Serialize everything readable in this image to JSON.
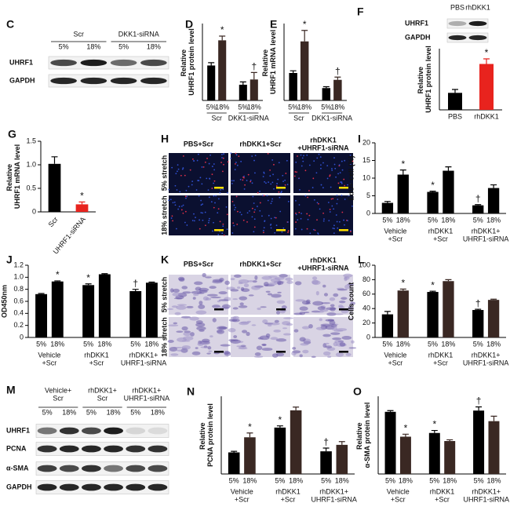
{
  "blots": [
    {
      "panel_label": "C",
      "headers": [
        [
          "Scr"
        ],
        [
          "DKK1-siRNA"
        ]
      ],
      "lanes": [
        "5%",
        "18%",
        "5%",
        "18%"
      ],
      "rows": [
        "UHRF1",
        "GAPDH"
      ]
    },
    {
      "panel_label": "F",
      "headers": [
        [
          "PBS"
        ],
        [
          "rhDKK1"
        ]
      ],
      "rows": [
        "UHRF1",
        "GAPDH"
      ]
    },
    {
      "panel_label": "M",
      "headers": [
        [
          "Vehicle+",
          "Scr"
        ],
        [
          "rhDKK1+",
          "Scr"
        ],
        [
          "rhDKK1+",
          "UHRF1-siRNA"
        ]
      ],
      "lanes": [
        "5%",
        "18%",
        "5%",
        "18%",
        "5%",
        "18%"
      ],
      "rows": [
        "UHRF1",
        "PCNA",
        "α-SMA",
        "GAPDH"
      ]
    }
  ],
  "images": [
    {
      "panel_label": "H",
      "columns": [
        [
          "PBS+Scr"
        ],
        [
          "rhDKK1+Scr"
        ],
        [
          "rhDKK1",
          "+UHRF1-siRNA"
        ]
      ],
      "rows": [
        "5% stretch",
        "18% stretch"
      ]
    },
    {
      "panel_label": "K",
      "columns": [
        [
          "PBS+Scr"
        ],
        [
          "rhDKK1+Scr"
        ],
        [
          "rhDKK1",
          "+UHRF1-siRNA"
        ]
      ],
      "rows": [
        "5% stretch",
        "18% stretch"
      ]
    }
  ],
  "chart_data": [
    {
      "type": "bar",
      "panel_label": "D",
      "ylabel": "Relative UHRF1 protein level",
      "categories": [
        "5%",
        "18%",
        "5%",
        "18%"
      ],
      "groups": [
        [
          "Scr"
        ],
        [
          "DKK1-siRNA"
        ]
      ],
      "values": [
        1.0,
        1.72,
        0.45,
        0.6
      ],
      "errors": [
        0.08,
        0.12,
        0.08,
        0.2
      ],
      "colors": [
        "#000000",
        "#3a2823",
        "#000000",
        "#3a2823"
      ],
      "annotations": [
        null,
        "*",
        null,
        "†"
      ],
      "ylim": [
        0,
        2.2
      ]
    },
    {
      "type": "bar",
      "panel_label": "E",
      "ylabel": "Relative UHRF1 mRNA level",
      "categories": [
        "5%",
        "18%",
        "5%",
        "18%"
      ],
      "groups": [
        [
          "Scr"
        ],
        [
          "DKK1-siRNA"
        ]
      ],
      "values": [
        1.0,
        2.15,
        0.45,
        0.75
      ],
      "errors": [
        0.08,
        0.4,
        0.05,
        0.1
      ],
      "colors": [
        "#000000",
        "#3a2823",
        "#000000",
        "#3a2823"
      ],
      "annotations": [
        null,
        "*",
        null,
        "†"
      ],
      "ylim": [
        0,
        2.8
      ]
    },
    {
      "type": "bar",
      "ylabel": "Relative UHRF1 protein level",
      "categories": [
        "PBS",
        "rhDKK1"
      ],
      "values": [
        1.0,
        2.7
      ],
      "errors": [
        0.2,
        0.3
      ],
      "colors": [
        "#000000",
        "#e8231e"
      ],
      "annotations": [
        null,
        "*"
      ],
      "ylim": [
        0,
        3.6
      ]
    },
    {
      "type": "bar",
      "panel_label": "G",
      "ylabel": "Relative UHRF1 mRNA level",
      "categories": [
        "Scr",
        "UHRF1-siRNA"
      ],
      "values": [
        1.02,
        0.16
      ],
      "errors": [
        0.15,
        0.05
      ],
      "colors": [
        "#000000",
        "#e8231e"
      ],
      "annotations": [
        null,
        "*"
      ],
      "ylim": [
        0,
        1.5
      ],
      "yticks": [
        0,
        0.5,
        {
          "value": 1,
          "label": "1.0"
        },
        1.5
      ]
    },
    {
      "type": "bar",
      "panel_label": "I",
      "ylabel": "EdU+ cell (%)",
      "categories": [
        "5%",
        "18%",
        "5%",
        "18%",
        "5%",
        "18%"
      ],
      "groups": [
        [
          "Vehicle",
          "+Scr"
        ],
        [
          "rhDKK1",
          "+Scr"
        ],
        [
          "rhDKK1+",
          "UHRF1-siRNA"
        ]
      ],
      "values": [
        3,
        11,
        6.1,
        12.1,
        2.3,
        7.2
      ],
      "errors": [
        0.4,
        1.3,
        0.2,
        1.1,
        0.2,
        0.9
      ],
      "colors": [
        "#000000",
        "#000000",
        "#000000",
        "#000000",
        "#000000",
        "#000000"
      ],
      "annotations": [
        null,
        "*",
        "*",
        null,
        "†",
        null
      ],
      "ylim": [
        0,
        20
      ],
      "yticks": [
        0,
        5,
        10,
        15,
        20
      ]
    },
    {
      "type": "bar",
      "panel_label": "J",
      "ylabel": "OD450nm",
      "categories": [
        "5%",
        "18%",
        "5%",
        "18%",
        "5%",
        "18%"
      ],
      "groups": [
        [
          "Vehicle",
          "+Scr"
        ],
        [
          "rhDKK1",
          "+Scr"
        ],
        [
          "rhDKK1+",
          "UHRF1-siRNA"
        ]
      ],
      "values": [
        0.72,
        0.93,
        0.87,
        1.05,
        0.77,
        0.91
      ],
      "errors": [
        0.01,
        0.01,
        0.02,
        0.01,
        0.03,
        0.01
      ],
      "colors": [
        "#000000",
        "#000000",
        "#000000",
        "#000000",
        "#000000",
        "#000000"
      ],
      "annotations": [
        null,
        "*",
        "*",
        null,
        "†",
        null
      ],
      "ylim": [
        0,
        1.2
      ],
      "yticks": [
        0,
        0.2,
        0.4,
        0.6,
        0.8,
        {
          "value": 1,
          "label": "1.0"
        },
        1.2
      ]
    },
    {
      "type": "bar",
      "panel_label": "L",
      "ylabel": "Cells count",
      "categories": [
        "5%",
        "18%",
        "5%",
        "18%",
        "5%",
        "18%"
      ],
      "groups": [
        [
          "Vehicle",
          "+Scr"
        ],
        [
          "rhDKK1",
          "+Scr"
        ],
        [
          "rhDKK1+",
          "UHRF1-siRNA"
        ]
      ],
      "values": [
        32,
        65,
        63,
        78,
        38,
        52
      ],
      "errors": [
        4,
        2,
        1,
        2,
        1,
        1
      ],
      "colors": [
        "#000000",
        "#3a2823",
        "#000000",
        "#3a2823",
        "#000000",
        "#3a2823"
      ],
      "annotations": [
        null,
        "*",
        "*",
        null,
        "†",
        null
      ],
      "ylim": [
        0,
        100
      ],
      "yticks": [
        0,
        20,
        40,
        60,
        80,
        100
      ]
    },
    {
      "type": "bar",
      "panel_label": "N",
      "ylabel": "Relative PCNA protein level",
      "categories": [
        "5%",
        "18%",
        "5%",
        "18%",
        "5%",
        "18%"
      ],
      "groups": [
        [
          "Vehicle",
          "+Scr"
        ],
        [
          "rhDKK1",
          "+Scr"
        ],
        [
          "rhDKK1+",
          "UHRF1-siRNA"
        ]
      ],
      "values": [
        1.0,
        1.7,
        2.15,
        2.95,
        1.05,
        1.35
      ],
      "errors": [
        0.05,
        0.2,
        0.08,
        0.15,
        0.15,
        0.15
      ],
      "colors": [
        "#000000",
        "#3a2823",
        "#000000",
        "#3a2823",
        "#000000",
        "#3a2823"
      ],
      "annotations": [
        null,
        "*",
        "*",
        null,
        "†",
        null
      ],
      "ylim": [
        0,
        3.6
      ]
    },
    {
      "type": "bar",
      "panel_label": "O",
      "ylabel": "Relative α-SMA protein level",
      "categories": [
        "5%",
        "18%",
        "5%",
        "18%",
        "5%",
        "18%"
      ],
      "groups": [
        [
          "Vehicle",
          "+Scr"
        ],
        [
          "rhDKK1",
          "+Scr"
        ],
        [
          "rhDKK1+",
          "UHRF1-siRNA"
        ]
      ],
      "values": [
        1.0,
        0.6,
        0.66,
        0.53,
        1.02,
        0.85
      ],
      "errors": [
        0.02,
        0.04,
        0.04,
        0.02,
        0.06,
        0.08
      ],
      "colors": [
        "#000000",
        "#3a2823",
        "#000000",
        "#3a2823",
        "#000000",
        "#3a2823"
      ],
      "annotations": [
        null,
        "*",
        "*",
        null,
        "†",
        null
      ],
      "ylim": [
        0,
        1.25
      ]
    }
  ]
}
